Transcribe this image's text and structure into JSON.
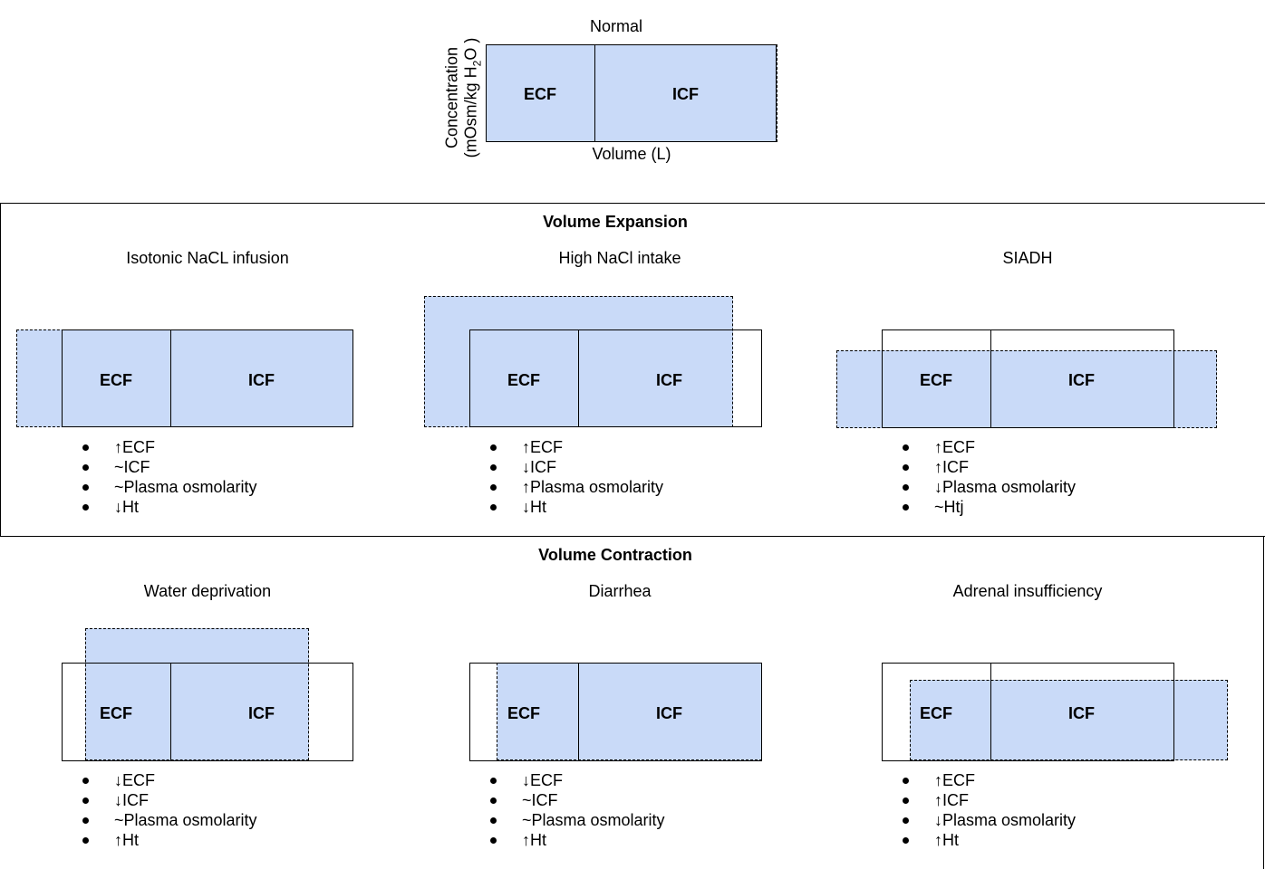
{
  "normal": {
    "title": "Normal",
    "y_label_line1": "Concentration",
    "y_label_line2_prefix": "(mOsm/kg H",
    "y_label_sub": "2",
    "y_label_line2_suffix": "O )",
    "x_label": "Volume (L)",
    "ecf_label": "ECF",
    "icf_label": "ICF"
  },
  "expansion": {
    "title": "Volume Expansion",
    "cases": [
      {
        "title": "Isotonic NaCL infusion",
        "ecf_label": "ECF",
        "icf_label": "ICF",
        "effects": [
          "↑ECF",
          "~ICF",
          "~Plasma osmolarity",
          "↓Ht"
        ]
      },
      {
        "title": "High NaCl intake",
        "ecf_label": "ECF",
        "icf_label": "ICF",
        "effects": [
          "↑ECF",
          "↓ICF",
          "↑Plasma osmolarity",
          "↓Ht"
        ]
      },
      {
        "title": "SIADH",
        "ecf_label": "ECF",
        "icf_label": "ICF",
        "effects": [
          "↑ECF",
          "↑ICF",
          "↓Plasma osmolarity",
          "~Htj"
        ]
      }
    ]
  },
  "contraction": {
    "title": "Volume Contraction",
    "cases": [
      {
        "title": "Water deprivation",
        "ecf_label": "ECF",
        "icf_label": "ICF",
        "effects": [
          "↓ECF",
          "↓ICF",
          "~Plasma osmolarity",
          "↑Ht"
        ]
      },
      {
        "title": "Diarrhea",
        "ecf_label": "ECF",
        "icf_label": "ICF",
        "effects": [
          "↓ECF",
          "~ICF",
          "~Plasma osmolarity",
          "↑Ht"
        ]
      },
      {
        "title": "Adrenal insufficiency",
        "ecf_label": "ECF",
        "icf_label": "ICF",
        "effects": [
          "↑ECF",
          "↑ICF",
          "↓Plasma osmolarity",
          "↑Ht"
        ]
      }
    ]
  },
  "colors": {
    "fluid_fill": "#c9daf8",
    "line": "#000000"
  }
}
